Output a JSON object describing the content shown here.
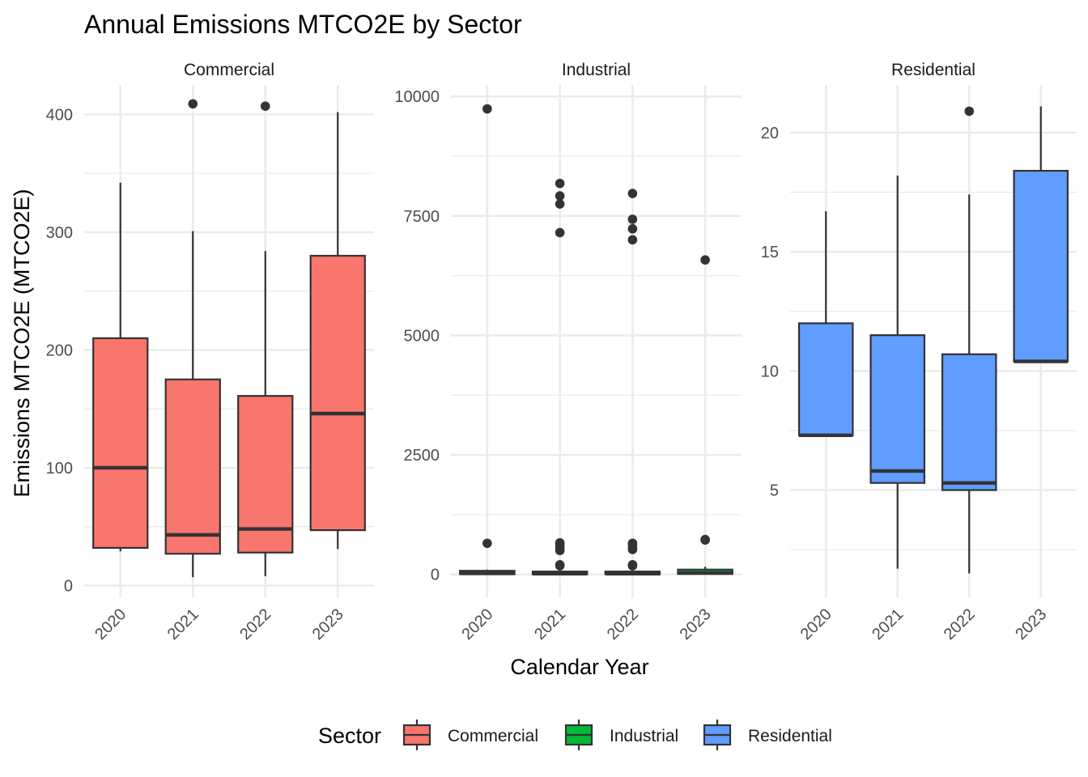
{
  "chart_data": {
    "type": "box",
    "title": "Annual Emissions MTCO2E by Sector",
    "xlabel": "Calendar Year",
    "ylabel": "Emissions MTCO2E (MTCO2E)",
    "categories": [
      "2020",
      "2021",
      "2022",
      "2023"
    ],
    "legend": {
      "title": "Sector",
      "position": "bottom",
      "entries": [
        {
          "name": "Commercial",
          "color": "#F8766D"
        },
        {
          "name": "Industrial",
          "color": "#00BA38"
        },
        {
          "name": "Residential",
          "color": "#619CFF"
        }
      ]
    },
    "grid": true,
    "facets": [
      {
        "name": "Commercial",
        "color": "#F8766D",
        "ylim": [
          -10,
          425
        ],
        "yticks": [
          0,
          100,
          200,
          300,
          400
        ],
        "boxes": [
          {
            "x": "2020",
            "whisker_low": 29,
            "q1": 32,
            "median": 100,
            "q3": 210,
            "whisker_high": 342,
            "outliers": []
          },
          {
            "x": "2021",
            "whisker_low": 7,
            "q1": 27,
            "median": 43,
            "q3": 175,
            "whisker_high": 301,
            "outliers": [
              409
            ]
          },
          {
            "x": "2022",
            "whisker_low": 8,
            "q1": 28,
            "median": 48,
            "q3": 161,
            "whisker_high": 284,
            "outliers": [
              407
            ]
          },
          {
            "x": "2023",
            "whisker_low": 31,
            "q1": 47,
            "median": 146,
            "q3": 280,
            "whisker_high": 402,
            "outliers": []
          }
        ]
      },
      {
        "name": "Industrial",
        "color": "#00BA38",
        "ylim": [
          -480,
          10240
        ],
        "yticks": [
          0,
          2500,
          5000,
          7500,
          10000
        ],
        "boxes": [
          {
            "x": "2020",
            "whisker_low": 0,
            "q1": 5,
            "median": 20,
            "q3": 75,
            "whisker_high": 100,
            "outliers": [
              650,
              9740
            ]
          },
          {
            "x": "2021",
            "whisker_low": 0,
            "q1": 5,
            "median": 15,
            "q3": 60,
            "whisker_high": 100,
            "outliers": [
              180,
              200,
              500,
              560,
              620,
              660,
              7150,
              7750,
              7920,
              8180
            ]
          },
          {
            "x": "2022",
            "whisker_low": 0,
            "q1": 5,
            "median": 15,
            "q3": 60,
            "whisker_high": 100,
            "outliers": [
              180,
              200,
              520,
              560,
              620,
              650,
              7000,
              7230,
              7430,
              7970
            ]
          },
          {
            "x": "2023",
            "whisker_low": 0,
            "q1": 10,
            "median": 30,
            "q3": 100,
            "whisker_high": 160,
            "outliers": [
              720,
              730,
              6580
            ]
          }
        ]
      },
      {
        "name": "Residential",
        "color": "#619CFF",
        "ylim": [
          0.5,
          22
        ],
        "yticks": [
          5,
          10,
          15,
          20
        ],
        "boxes": [
          {
            "x": "2020",
            "whisker_low": 7.3,
            "q1": 7.3,
            "median": 7.3,
            "q3": 12.0,
            "whisker_high": 16.7,
            "outliers": []
          },
          {
            "x": "2021",
            "whisker_low": 1.7,
            "q1": 5.3,
            "median": 5.8,
            "q3": 11.5,
            "whisker_high": 18.2,
            "outliers": []
          },
          {
            "x": "2022",
            "whisker_low": 1.5,
            "q1": 5.0,
            "median": 5.3,
            "q3": 10.7,
            "whisker_high": 17.4,
            "outliers": [
              20.9
            ]
          },
          {
            "x": "2023",
            "whisker_low": 10.4,
            "q1": 10.4,
            "median": 10.4,
            "q3": 18.4,
            "whisker_high": 21.1,
            "outliers": []
          }
        ]
      }
    ]
  }
}
